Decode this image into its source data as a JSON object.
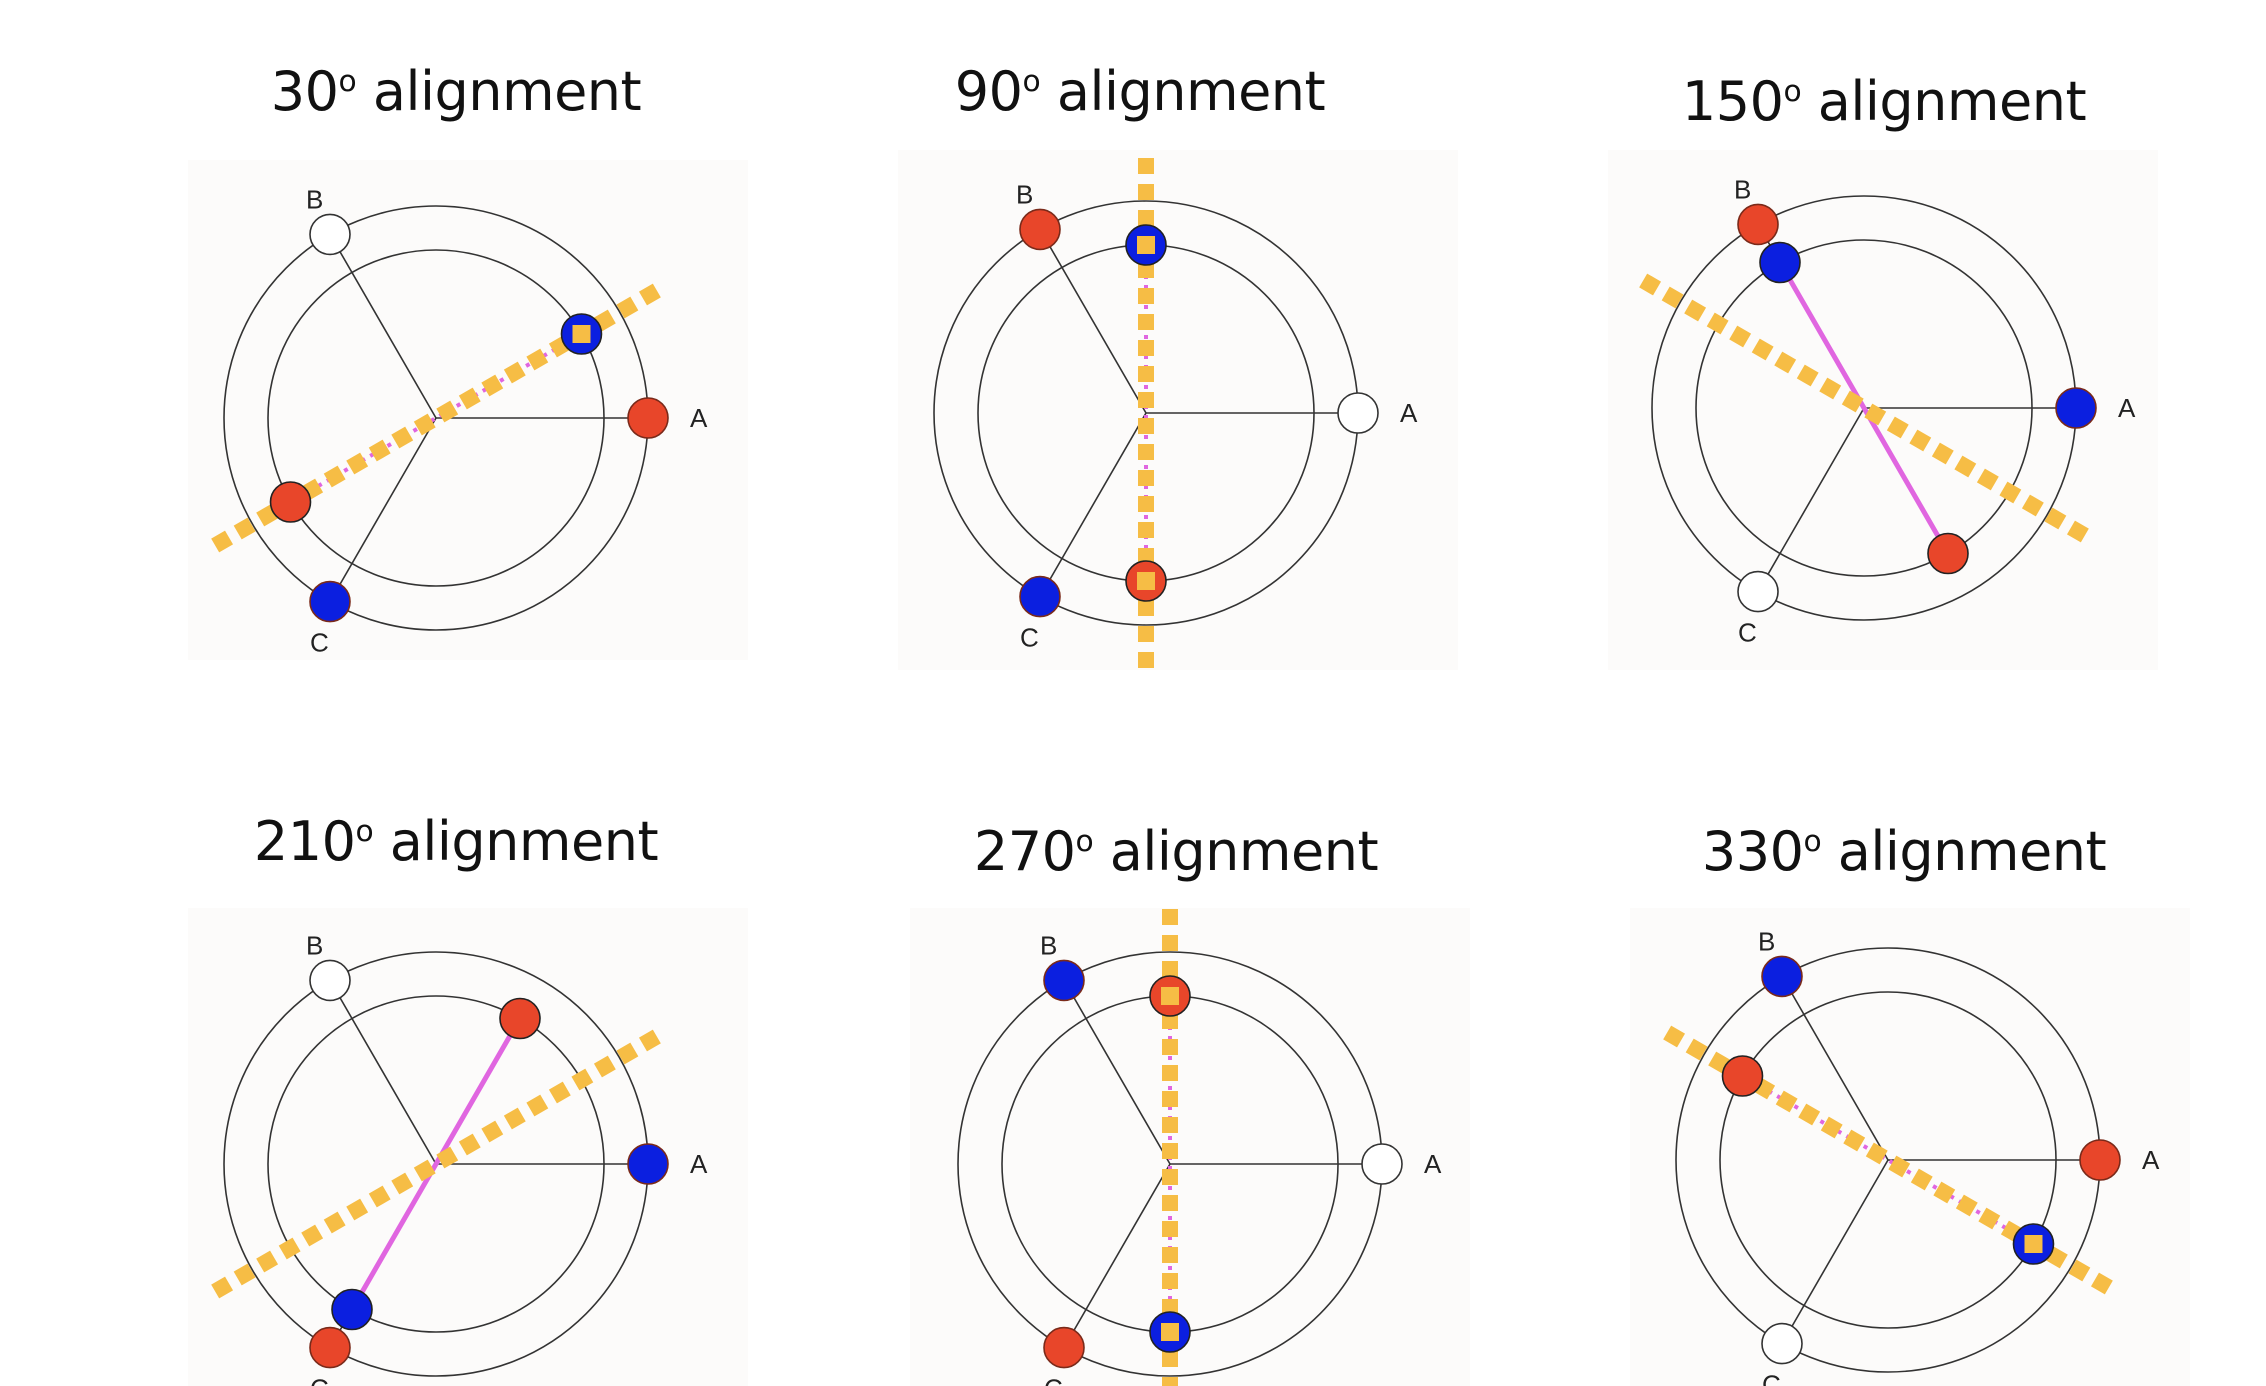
{
  "colors": {
    "red": "#e8462a",
    "blue": "#0b1fe0",
    "open": "#ffffff",
    "alignment_line": "#f6bd45",
    "connector": "#e066e0",
    "ring": "#333333",
    "spoke": "#333333"
  },
  "phase_labels": {
    "a": "A",
    "b": "B",
    "c": "C"
  },
  "panels": [
    {
      "title_num": "30",
      "title_deg": "o",
      "title_word": "alignment",
      "alignment_angle_deg": 30,
      "outer": {
        "a": "red",
        "b": "open",
        "c": "blue"
      },
      "inner": [
        {
          "angle": 30,
          "color": "blue",
          "marker": true
        },
        {
          "angle": 210,
          "color": "red",
          "marker": false
        }
      ],
      "connector_style": "dotted"
    },
    {
      "title_num": "90",
      "title_deg": "o",
      "title_word": "alignment",
      "alignment_angle_deg": 90,
      "outer": {
        "a": "open",
        "b": "red",
        "c": "blue"
      },
      "inner": [
        {
          "angle": 90,
          "color": "blue",
          "marker": true
        },
        {
          "angle": 270,
          "color": "red",
          "marker": true
        }
      ],
      "connector_style": "dotted"
    },
    {
      "title_num": "150",
      "title_deg": "o",
      "title_word": "alignment",
      "alignment_angle_deg": 150,
      "outer": {
        "a": "blue",
        "b": "red",
        "c": "open"
      },
      "inner": [
        {
          "angle": 120,
          "color": "blue",
          "marker": false
        },
        {
          "angle": 300,
          "color": "red",
          "marker": false
        }
      ],
      "connector_style": "solid"
    },
    {
      "title_num": "210",
      "title_deg": "o",
      "title_word": "alignment",
      "alignment_angle_deg": 210,
      "outer": {
        "a": "blue",
        "b": "open",
        "c": "red"
      },
      "inner": [
        {
          "angle": 60,
          "color": "red",
          "marker": false
        },
        {
          "angle": 240,
          "color": "blue",
          "marker": false
        }
      ],
      "connector_style": "solid"
    },
    {
      "title_num": "270",
      "title_deg": "o",
      "title_word": "alignment",
      "alignment_angle_deg": 270,
      "outer": {
        "a": "open",
        "b": "blue",
        "c": "red"
      },
      "inner": [
        {
          "angle": 90,
          "color": "red",
          "marker": true
        },
        {
          "angle": 270,
          "color": "blue",
          "marker": true
        }
      ],
      "connector_style": "dotted"
    },
    {
      "title_num": "330",
      "title_deg": "o",
      "title_word": "alignment",
      "alignment_angle_deg": 330,
      "outer": {
        "a": "red",
        "b": "blue",
        "c": "open"
      },
      "inner": [
        {
          "angle": 150,
          "color": "red",
          "marker": false
        },
        {
          "angle": 330,
          "color": "blue",
          "marker": true
        }
      ],
      "connector_style": "dotted"
    }
  ]
}
